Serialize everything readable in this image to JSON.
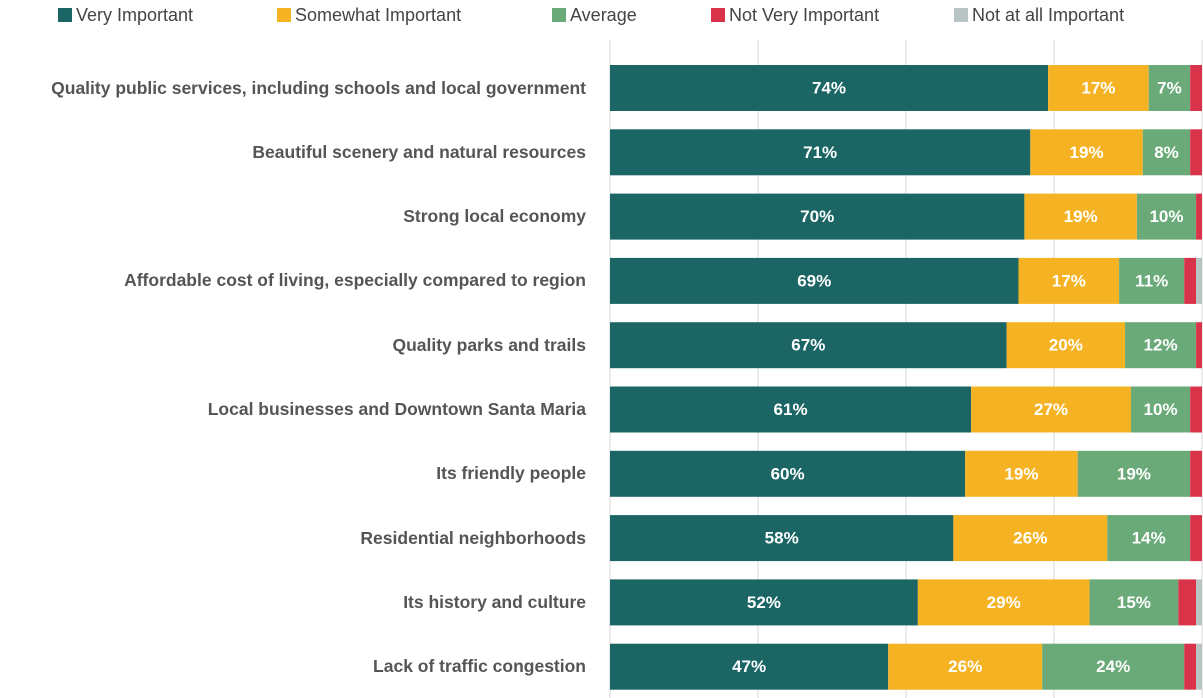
{
  "chart_data": {
    "type": "stacked-bar-horizontal",
    "categories": [
      "Quality public services, including schools and local government",
      "Beautiful scenery and natural resources",
      "Strong local economy",
      "Affordable cost of living, especially compared to region",
      "Quality parks and trails",
      "Local businesses and Downtown Santa Maria",
      "Its friendly people",
      "Residential neighborhoods",
      "Its history and culture",
      "Lack of traffic congestion"
    ],
    "series": [
      {
        "name": "Very Important",
        "color": "#1b6565",
        "values": [
          74,
          71,
          70,
          69,
          67,
          61,
          60,
          58,
          52,
          47
        ],
        "value_labels": [
          "74%",
          "71%",
          "70%",
          "69%",
          "67%",
          "61%",
          "60%",
          "58%",
          "52%",
          "47%"
        ]
      },
      {
        "name": "Somewhat Important",
        "color": "#f5b324",
        "values": [
          17,
          19,
          19,
          17,
          20,
          27,
          19,
          26,
          29,
          26
        ],
        "value_labels": [
          "17%",
          "19%",
          "19%",
          "17%",
          "20%",
          "27%",
          "19%",
          "26%",
          "29%",
          "26%"
        ]
      },
      {
        "name": "Average",
        "color": "#6aaa78",
        "values": [
          7,
          8,
          10,
          11,
          12,
          10,
          19,
          14,
          15,
          24
        ],
        "value_labels": [
          "7%",
          "8%",
          "10%",
          "11%",
          "12%",
          "10%",
          "19%",
          "14%",
          "15%",
          "24%"
        ]
      },
      {
        "name": "Not Very Important",
        "color": "#d9334a",
        "values": [
          2,
          2,
          1,
          2,
          1,
          2,
          2,
          2,
          3,
          2
        ]
      },
      {
        "name": "Not at all Important",
        "color": "#b8c4c4",
        "values": [
          0,
          0,
          0,
          1,
          0,
          0,
          0,
          0,
          1,
          1
        ]
      }
    ],
    "xlim": [
      0,
      100
    ],
    "xticks": [
      0,
      25,
      50,
      75,
      100
    ],
    "grid": true,
    "legend": "top"
  }
}
